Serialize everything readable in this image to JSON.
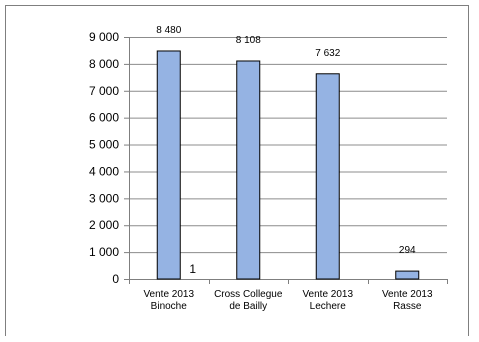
{
  "chart_data": {
    "type": "bar",
    "title": "",
    "xlabel": "",
    "ylabel": "",
    "ylim": [
      0,
      9000
    ],
    "yticks": [
      0,
      1000,
      2000,
      3000,
      4000,
      5000,
      6000,
      7000,
      8000,
      9000
    ],
    "ytick_labels": [
      "0",
      "1 000",
      "2 000",
      "3 000",
      "4 000",
      "5 000",
      "6 000",
      "7 000",
      "8 000",
      "9 000"
    ],
    "grid": true,
    "legend": "none",
    "categories": [
      [
        "Vente 2013",
        "Binoche"
      ],
      [
        "Cross Collegue",
        "de Bailly"
      ],
      [
        "Vente 2013",
        "Lechere"
      ],
      [
        "Vente 2013",
        "Rasse"
      ]
    ],
    "series": [
      {
        "values": [
          8480,
          8108,
          7632,
          294
        ],
        "labels": [
          "8 480",
          "8 108",
          "7 632",
          "294"
        ],
        "color": "#95b3e3",
        "edge_color": "#000000"
      }
    ],
    "annotations": [
      {
        "text": "1",
        "category_index": 0
      }
    ]
  }
}
